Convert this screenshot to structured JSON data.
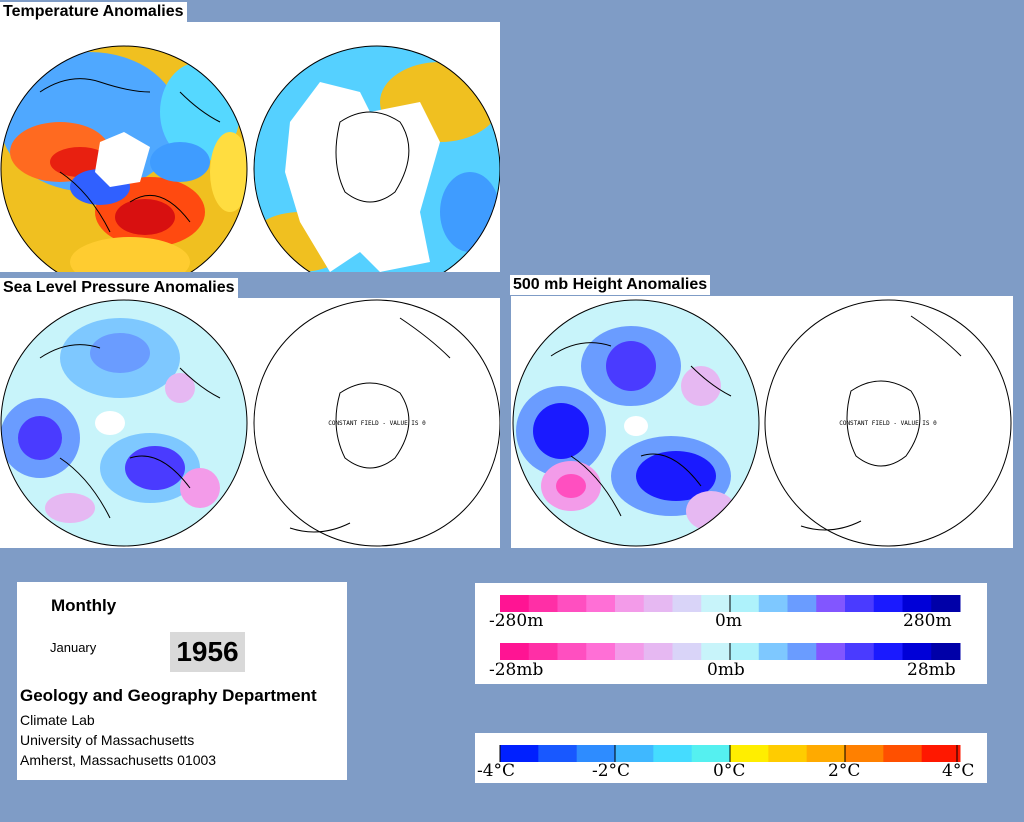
{
  "sections": {
    "temperature_title": "Temperature Anomalies",
    "slp_title": "Sea Level Pressure Anomalies",
    "height_title": "500 mb Height Anomalies",
    "constant_field_text": "CONSTANT FIELD - VALUE IS 0"
  },
  "info": {
    "period": "Monthly",
    "month": "January",
    "year": "1956",
    "department": "Geology and Geography Department",
    "lab": "Climate Lab",
    "university": "University of Massachusetts",
    "address": "Amherst, Massachusetts 01003"
  },
  "scales": {
    "height": {
      "left": "-280m",
      "center": "0m",
      "right": "280m"
    },
    "pressure": {
      "left": "-28mb",
      "center": "0mb",
      "right": "28mb"
    },
    "temperature": [
      "-4°C",
      "-2°C",
      "0°C",
      "2°C",
      "4°C"
    ]
  },
  "colors": {
    "background": "#7f9cc6",
    "anomaly_scale": [
      "#ff1493",
      "#ff2fa6",
      "#ff4fc0",
      "#ff6fd6",
      "#f39be9",
      "#e6b8f2",
      "#d9d4f8",
      "#c8f4fa",
      "#aef2fb",
      "#7ec8ff",
      "#6a9cff",
      "#8256ff",
      "#4a3bff",
      "#1a1aff",
      "#0000d8",
      "#0000a8"
    ],
    "temperature_scale": [
      "#0020ff",
      "#1858ff",
      "#2e8cff",
      "#3fb8ff",
      "#45dcff",
      "#55f0f0",
      "#ffee00",
      "#ffcc00",
      "#ffaa00",
      "#ff8000",
      "#ff5000",
      "#ff1800"
    ]
  }
}
